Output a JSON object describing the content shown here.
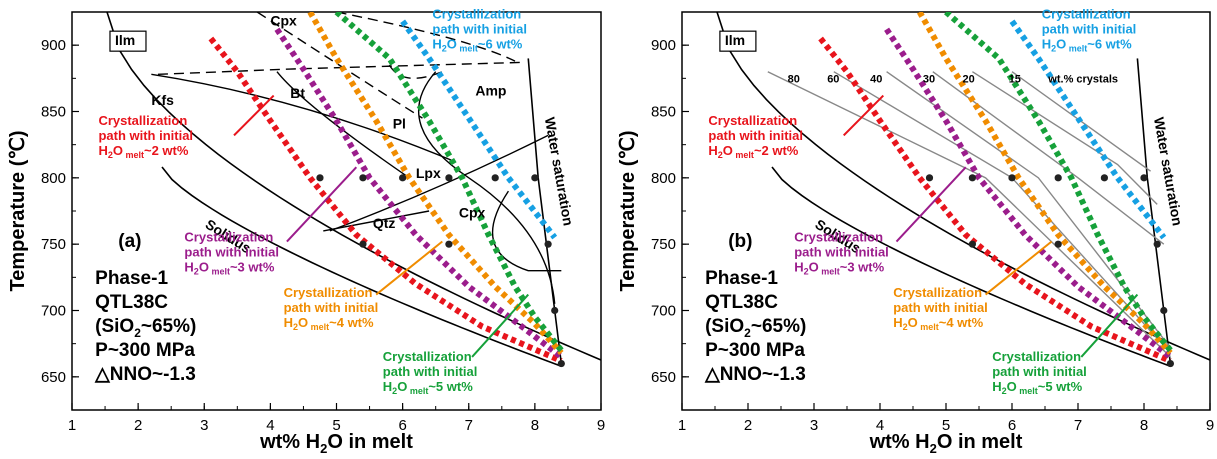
{
  "chart_data": [
    {
      "type": "line",
      "panel": "(a)",
      "xlabel": "wt% H2O in melt",
      "xlabel_parts": [
        "wt% H",
        "2",
        "O in melt"
      ],
      "ylabel": "Temperature (℃)",
      "xlim": [
        1,
        9
      ],
      "ylim": [
        625,
        925
      ],
      "xticks": [
        1,
        2,
        3,
        4,
        5,
        6,
        7,
        8,
        9
      ],
      "yticks": [
        650,
        700,
        750,
        800,
        850,
        900
      ],
      "info": [
        "Phase-1",
        "QTL38C",
        "(SiO2~65%)",
        "P~300 MPa",
        "△NNO~-1.3"
      ],
      "phase_labels": [
        "Ilm",
        "Cpx",
        "Amp",
        "Bt",
        "Kfs",
        "Pl",
        "Lpx",
        "Qtz",
        "Cpx",
        "Solidus",
        "Water saturation"
      ],
      "series": [
        {
          "name": "Crystallization path with initial H2O melt ~2 wt%",
          "color": "#e8141c",
          "x": [
            3.1,
            3.5,
            4.0,
            4.6,
            5.3,
            6.2,
            7.2,
            8.4
          ],
          "y": [
            905,
            880,
            843,
            800,
            757,
            720,
            688,
            662
          ]
        },
        {
          "name": "Crystallization path with initial H2O melt ~3 wt%",
          "color": "#9b1d8c",
          "x": [
            4.1,
            4.5,
            5.0,
            5.5,
            6.2,
            7.0,
            7.8,
            8.4
          ],
          "y": [
            912,
            882,
            843,
            800,
            757,
            718,
            688,
            665
          ]
        },
        {
          "name": "Crystallization path with initial H2O melt ~4 wt%",
          "color": "#f08c00",
          "x": [
            4.6,
            5.0,
            5.6,
            6.1,
            6.7,
            7.4,
            8.0,
            8.4
          ],
          "y": [
            925,
            890,
            843,
            800,
            757,
            718,
            690,
            668
          ]
        },
        {
          "name": "Crystallization path with initial H2O melt ~5 wt%",
          "color": "#16a13a",
          "x": [
            5.0,
            5.8,
            6.4,
            6.9,
            7.3,
            7.7,
            8.0,
            8.4
          ],
          "y": [
            925,
            890,
            843,
            800,
            757,
            718,
            695,
            670
          ]
        },
        {
          "name": "Crystallization path with initial H2O melt ~6 wt%",
          "color": "#16a0e3",
          "x": [
            6.0,
            6.4,
            7.0,
            7.6,
            8.1,
            8.3
          ],
          "y": [
            918,
            890,
            845,
            800,
            768,
            755
          ]
        }
      ],
      "experiments": {
        "x": [
          4.75,
          5.4,
          6.0,
          6.7,
          7.4,
          8.0,
          5.4,
          6.7,
          8.2,
          8.3,
          8.4
        ],
        "y": [
          800,
          800,
          800,
          800,
          800,
          800,
          750,
          750,
          750,
          700,
          660
        ]
      },
      "annotations": [
        {
          "lines": [
            "Crystallization",
            "path with initial",
            "H2O melt~2 wt%"
          ],
          "color": "#e8141c"
        },
        {
          "lines": [
            "Crystallization",
            "path with initial",
            "H2O melt~3 wt%"
          ],
          "color": "#9b1d8c"
        },
        {
          "lines": [
            "Crystallization",
            "path with initial",
            "H2O melt~4 wt%"
          ],
          "color": "#f08c00"
        },
        {
          "lines": [
            "Crystallization",
            "path with initial",
            "H2O melt~5 wt%"
          ],
          "color": "#16a13a"
        },
        {
          "lines": [
            "Crystallization",
            "path with initial",
            "H2O melt~6 wt%"
          ],
          "color": "#16a0e3"
        }
      ]
    },
    {
      "type": "line",
      "panel": "(b)",
      "xlabel": "wt% H2O in melt",
      "xlabel_parts": [
        "wt% H",
        "2",
        "O in melt"
      ],
      "ylabel": "Temperature (℃)",
      "xlim": [
        1,
        9
      ],
      "ylim": [
        625,
        925
      ],
      "xticks": [
        1,
        2,
        3,
        4,
        5,
        6,
        7,
        8,
        9
      ],
      "yticks": [
        650,
        700,
        750,
        800,
        850,
        900
      ],
      "info": [
        "Phase-1",
        "QTL38C",
        "(SiO2~65%)",
        "P~300 MPa",
        "△NNO~-1.3"
      ],
      "phase_labels": [
        "Ilm",
        "Solidus",
        "Water saturation"
      ],
      "isopleth_labels": [
        "80",
        "60",
        "40",
        "30",
        "20",
        "15",
        "wt.% crystals"
      ],
      "series": [
        {
          "name": "Crystallization path with initial H2O melt ~2 wt%",
          "color": "#e8141c",
          "x": [
            3.1,
            3.5,
            4.0,
            4.6,
            5.3,
            6.2,
            7.2,
            8.4
          ],
          "y": [
            905,
            880,
            843,
            800,
            757,
            720,
            688,
            662
          ]
        },
        {
          "name": "Crystallization path with initial H2O melt ~3 wt%",
          "color": "#9b1d8c",
          "x": [
            4.1,
            4.5,
            5.0,
            5.5,
            6.2,
            7.0,
            7.8,
            8.4
          ],
          "y": [
            912,
            882,
            843,
            800,
            757,
            718,
            688,
            665
          ]
        },
        {
          "name": "Crystallization path with initial H2O melt ~4 wt%",
          "color": "#f08c00",
          "x": [
            4.6,
            5.0,
            5.6,
            6.1,
            6.7,
            7.4,
            8.0,
            8.4
          ],
          "y": [
            925,
            890,
            843,
            800,
            757,
            718,
            690,
            668
          ]
        },
        {
          "name": "Crystallization path with initial H2O melt ~5 wt%",
          "color": "#16a13a",
          "x": [
            5.0,
            5.8,
            6.4,
            6.9,
            7.3,
            7.7,
            8.0,
            8.4
          ],
          "y": [
            925,
            890,
            843,
            800,
            757,
            718,
            695,
            670
          ]
        },
        {
          "name": "Crystallization path with initial H2O melt ~6 wt%",
          "color": "#16a0e3",
          "x": [
            6.0,
            6.4,
            7.0,
            7.6,
            8.1,
            8.3
          ],
          "y": [
            918,
            890,
            845,
            800,
            768,
            755
          ]
        }
      ],
      "experiments": {
        "x": [
          4.75,
          5.4,
          6.0,
          6.7,
          7.4,
          8.0,
          5.4,
          6.7,
          8.2,
          8.3,
          8.4
        ],
        "y": [
          800,
          800,
          800,
          800,
          800,
          800,
          750,
          750,
          750,
          700,
          660
        ]
      },
      "annotations": [
        {
          "lines": [
            "Crystallization",
            "path with initial",
            "H2O melt~2 wt%"
          ],
          "color": "#e8141c"
        },
        {
          "lines": [
            "Crystallization",
            "path with initial",
            "H2O melt~3 wt%"
          ],
          "color": "#9b1d8c"
        },
        {
          "lines": [
            "Crystallization",
            "path with initial",
            "H2O melt~4 wt%"
          ],
          "color": "#f08c00"
        },
        {
          "lines": [
            "Crystallization",
            "path with initial",
            "H2O melt~5 wt%"
          ],
          "color": "#16a13a"
        },
        {
          "lines": [
            "Crystallization",
            "path with initial",
            "H2O melt~6 wt%"
          ],
          "color": "#16a0e3"
        }
      ]
    }
  ]
}
